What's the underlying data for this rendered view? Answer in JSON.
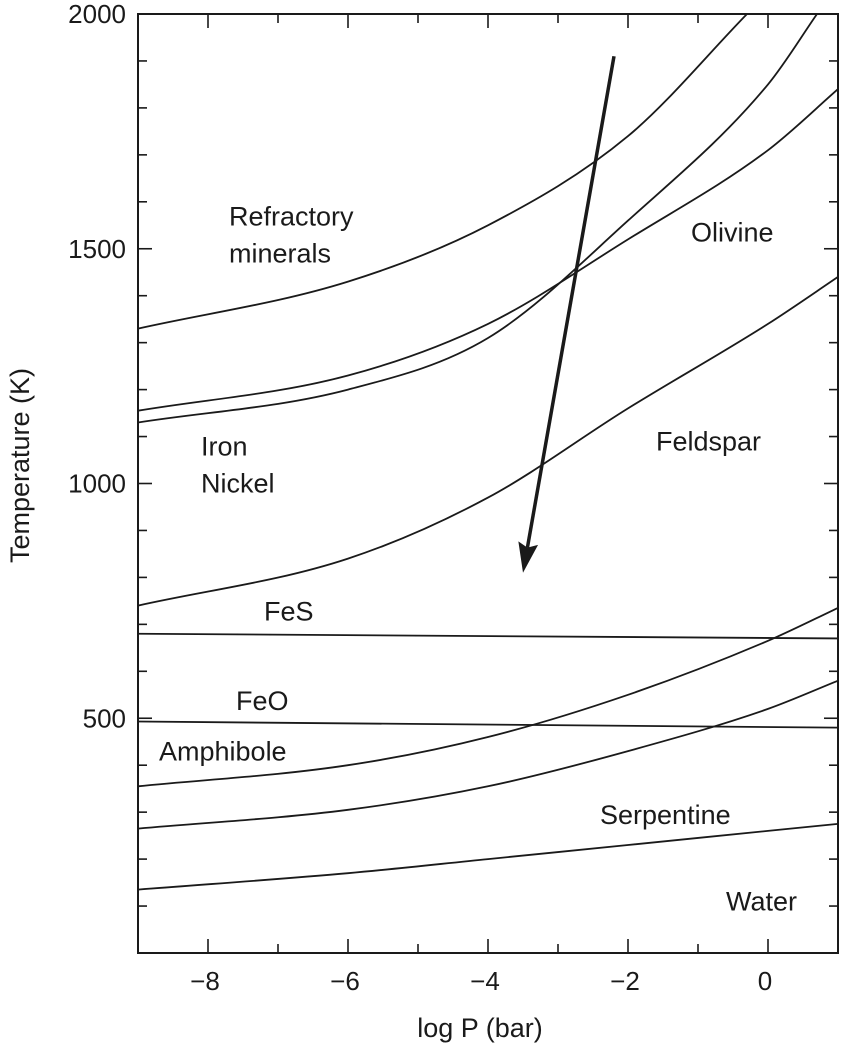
{
  "chart_data": {
    "type": "line",
    "xlabel": "log P (bar)",
    "ylabel": "Temperature (K)",
    "xlim": [
      -9,
      1
    ],
    "ylim": [
      0,
      2000
    ],
    "x_ticks": [
      -8,
      -6,
      -4,
      -2,
      0
    ],
    "x_tick_labels": [
      "−8",
      "−6",
      "−4",
      "−2",
      "0"
    ],
    "y_ticks": [
      500,
      1000,
      1500,
      2000
    ],
    "y_tick_labels": [
      "500",
      "1000",
      "1500",
      "2000"
    ],
    "x_minor_step": 1,
    "y_minor_step": 100,
    "grid": false,
    "series": [
      {
        "key": "refractory-curve",
        "x": [
          -9,
          -6,
          -4,
          -2,
          -0.3
        ],
        "y": [
          1330,
          1430,
          1550,
          1740,
          2000
        ]
      },
      {
        "key": "olivine-upper-curve",
        "x": [
          -9,
          -6,
          -4,
          -2,
          0,
          0.7
        ],
        "y": [
          1130,
          1200,
          1310,
          1560,
          1850,
          2000
        ]
      },
      {
        "key": "olivine-lower-curve",
        "x": [
          -9,
          -6,
          -4,
          -2,
          0,
          1
        ],
        "y": [
          1155,
          1230,
          1340,
          1520,
          1710,
          1840
        ]
      },
      {
        "key": "feldspar-curve",
        "x": [
          -9,
          -6,
          -4,
          -2,
          0,
          1
        ],
        "y": [
          740,
          840,
          970,
          1160,
          1340,
          1440
        ]
      },
      {
        "key": "fes-curve",
        "x": [
          -9,
          1
        ],
        "y": [
          680,
          670
        ]
      },
      {
        "key": "feo-curve",
        "x": [
          -9,
          1
        ],
        "y": [
          493,
          480
        ]
      },
      {
        "key": "amphibole-curve",
        "x": [
          -9,
          -6,
          -4,
          -2,
          0,
          1
        ],
        "y": [
          355,
          400,
          460,
          550,
          665,
          735
        ]
      },
      {
        "key": "serpentine-curve",
        "x": [
          -9,
          -6,
          -4,
          -2,
          0,
          1
        ],
        "y": [
          265,
          305,
          355,
          430,
          520,
          580
        ]
      },
      {
        "key": "water-curve",
        "x": [
          -9,
          -6,
          -4,
          -2,
          0,
          1
        ],
        "y": [
          135,
          170,
          200,
          230,
          260,
          275
        ]
      }
    ],
    "arrow": {
      "from": [
        -2.2,
        1910
      ],
      "to": [
        -3.5,
        810
      ]
    },
    "annotations": [
      {
        "lines": [
          "Refractory",
          "minerals"
        ],
        "x": -7.7,
        "y": 1550
      },
      {
        "lines": [
          "Olivine"
        ],
        "x": -1.1,
        "y": 1515
      },
      {
        "lines": [
          "Iron",
          "Nickel"
        ],
        "x": -8.1,
        "y": 1060
      },
      {
        "lines": [
          "Feldspar"
        ],
        "x": -1.6,
        "y": 1070
      },
      {
        "lines": [
          "FeS"
        ],
        "x": -7.2,
        "y": 708
      },
      {
        "lines": [
          "FeO"
        ],
        "x": -7.6,
        "y": 518
      },
      {
        "lines": [
          "Amphibole"
        ],
        "x": -8.7,
        "y": 410
      },
      {
        "lines": [
          "Serpentine"
        ],
        "x": -2.4,
        "y": 275
      },
      {
        "lines": [
          "Water"
        ],
        "x": -0.6,
        "y": 90
      }
    ]
  }
}
